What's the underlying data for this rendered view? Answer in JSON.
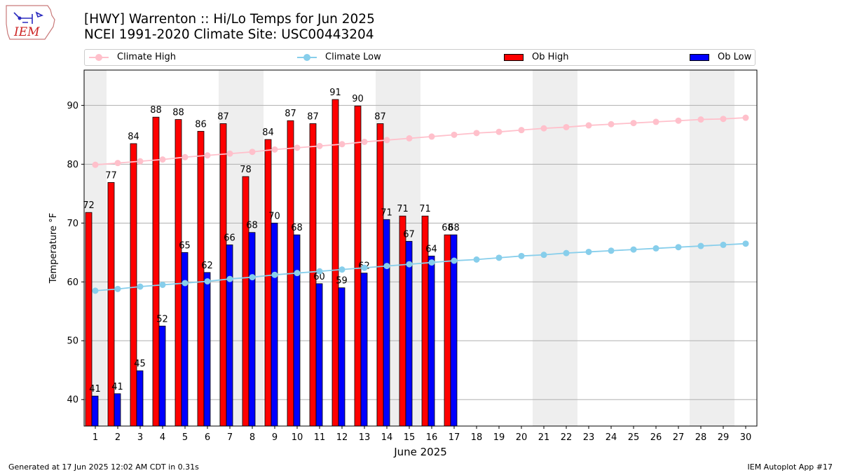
{
  "header": {
    "title_line1": "[HWY] Warrenton :: Hi/Lo Temps for Jun 2025",
    "title_line2": "NCEI 1991-2020 Climate Site: USC00443204",
    "logo_text": "IEM"
  },
  "legend": {
    "placement": "top",
    "items": [
      {
        "label": "Climate High",
        "kind": "line",
        "color": "#ffc0cb"
      },
      {
        "label": "Climate Low",
        "kind": "line",
        "color": "#87ceeb"
      },
      {
        "label": "Ob High",
        "kind": "bar",
        "color": "#ff0000"
      },
      {
        "label": "Ob Low",
        "kind": "bar",
        "color": "#0000ff"
      }
    ]
  },
  "footer": {
    "generated": "Generated at 17 Jun 2025 12:02 AM CDT in 0.31s",
    "app": "IEM Autoplot App #17"
  },
  "chart_data": {
    "type": "bar",
    "xlabel": "June 2025",
    "ylabel": "Temperature °F",
    "ylim": [
      35.5,
      96
    ],
    "yticks": [
      40,
      50,
      60,
      70,
      80,
      90
    ],
    "grid": true,
    "weekend_days": [
      1,
      7,
      8,
      14,
      15,
      21,
      22,
      28,
      29
    ],
    "days": [
      1,
      2,
      3,
      4,
      5,
      6,
      7,
      8,
      9,
      10,
      11,
      12,
      13,
      14,
      15,
      16,
      17,
      18,
      19,
      20,
      21,
      22,
      23,
      24,
      25,
      26,
      27,
      28,
      29,
      30
    ],
    "bar_labels": {
      "ob_high": [
        "72",
        "77",
        "84",
        "88",
        "88",
        "86",
        "87",
        "78",
        "84",
        "87",
        "87",
        "91",
        "90",
        "87",
        "71",
        "71",
        "68"
      ],
      "ob_low": [
        "41",
        "41",
        "45",
        "52",
        "65",
        "62",
        "66",
        "68",
        "70",
        "68",
        "60",
        "59",
        "62",
        "71",
        "67",
        "64",
        "68"
      ]
    },
    "series": [
      {
        "name": "Climate High",
        "kind": "line",
        "color": "#ffc0cb",
        "values": [
          79.9,
          80.2,
          80.5,
          80.8,
          81.2,
          81.5,
          81.8,
          82.1,
          82.5,
          82.8,
          83.1,
          83.4,
          83.8,
          84.1,
          84.4,
          84.7,
          85.0,
          85.3,
          85.5,
          85.8,
          86.1,
          86.3,
          86.6,
          86.8,
          87.0,
          87.2,
          87.4,
          87.6,
          87.7,
          87.9
        ]
      },
      {
        "name": "Climate Low",
        "kind": "line",
        "color": "#87ceeb",
        "values": [
          58.5,
          58.8,
          59.2,
          59.5,
          59.8,
          60.1,
          60.5,
          60.8,
          61.2,
          61.5,
          61.8,
          62.1,
          62.4,
          62.7,
          63.0,
          63.3,
          63.6,
          63.8,
          64.1,
          64.4,
          64.6,
          64.9,
          65.1,
          65.3,
          65.5,
          65.7,
          65.9,
          66.1,
          66.3,
          66.5
        ]
      },
      {
        "name": "Ob High",
        "kind": "bar",
        "color": "#ff0000",
        "values": [
          71.8,
          76.9,
          83.5,
          88.0,
          87.6,
          85.6,
          86.9,
          77.9,
          84.2,
          87.4,
          86.9,
          91.0,
          89.9,
          86.9,
          71.2,
          71.2,
          68.0
        ]
      },
      {
        "name": "Ob Low",
        "kind": "bar",
        "color": "#0000ff",
        "values": [
          40.6,
          41.0,
          44.9,
          52.5,
          65.0,
          61.6,
          66.3,
          68.4,
          70.0,
          68.0,
          59.7,
          59.0,
          61.5,
          70.6,
          66.9,
          64.4,
          68.0
        ]
      }
    ]
  }
}
